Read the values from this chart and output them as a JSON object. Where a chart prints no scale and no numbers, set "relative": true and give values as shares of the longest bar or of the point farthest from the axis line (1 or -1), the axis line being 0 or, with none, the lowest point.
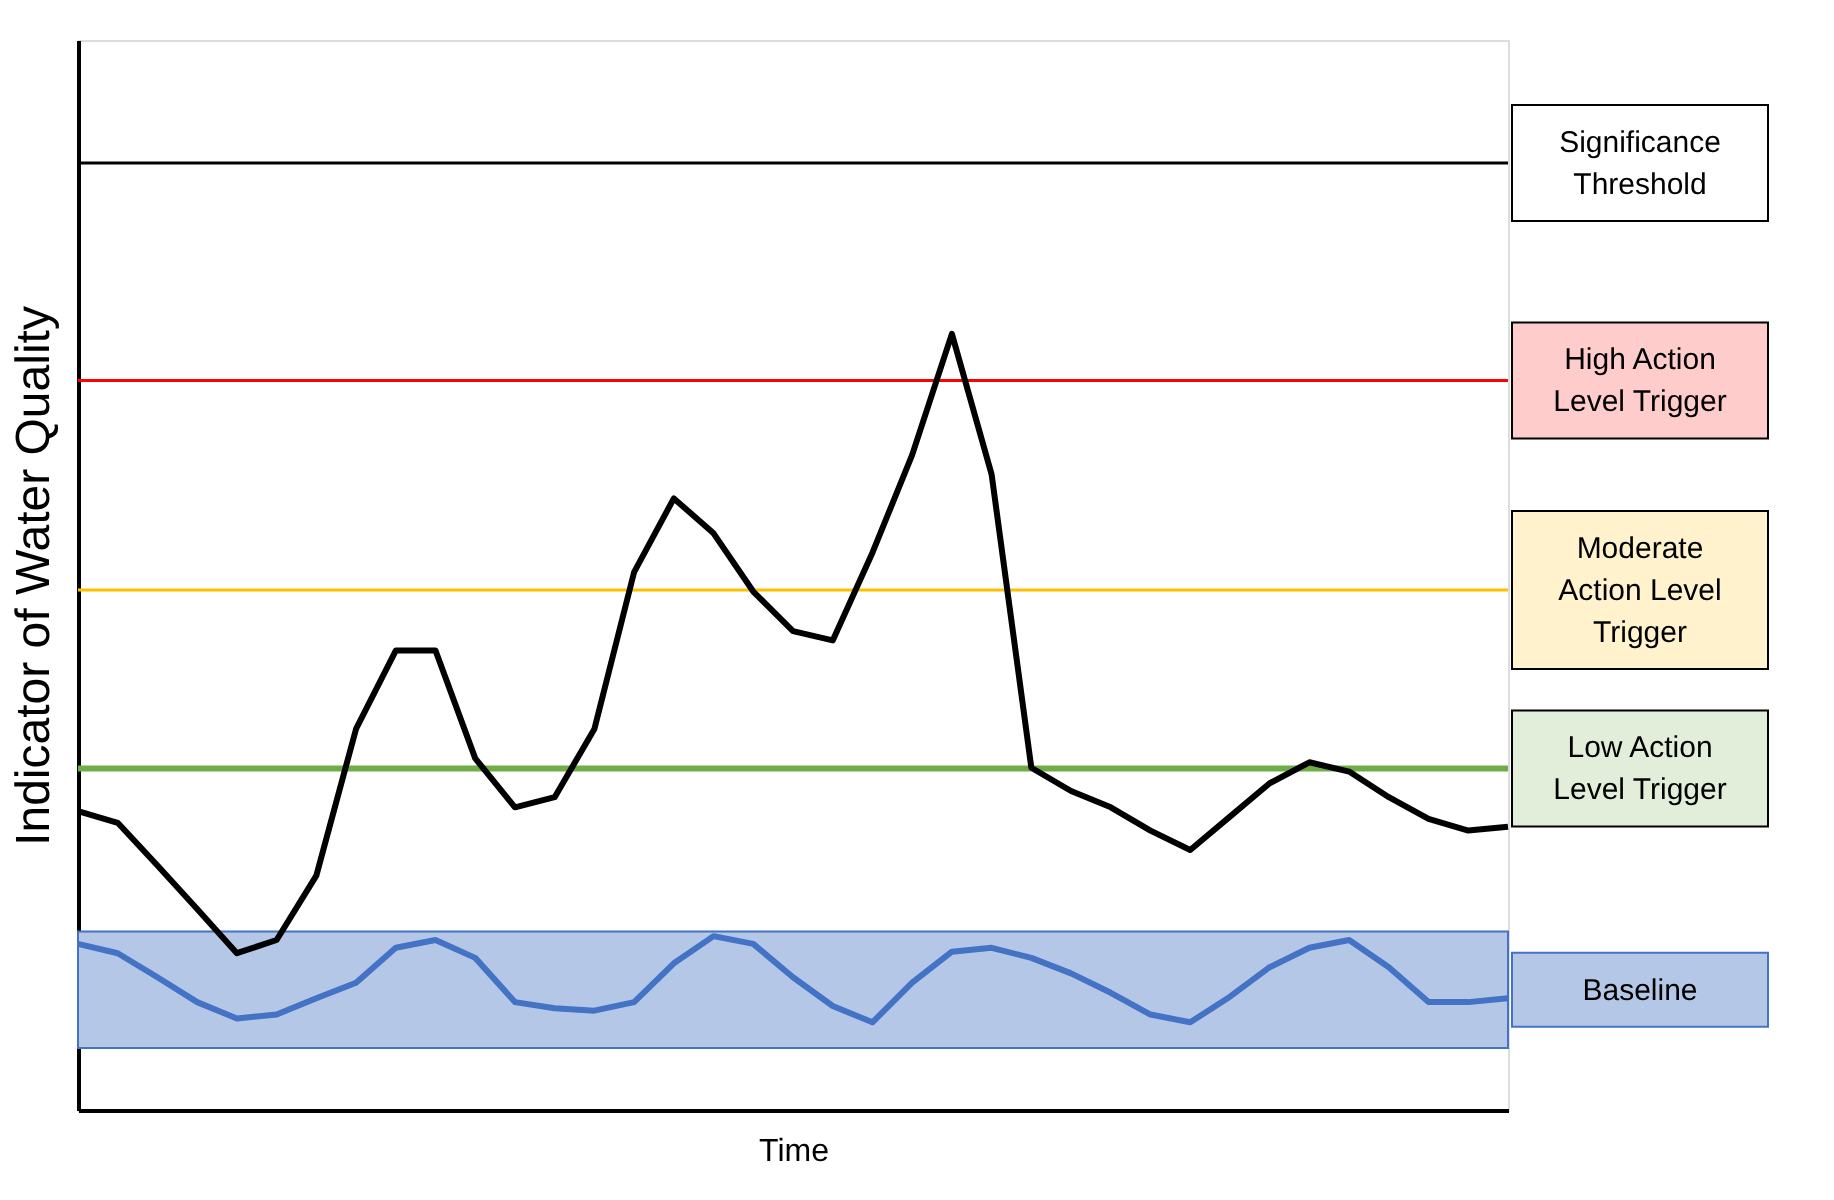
{
  "chart_data": {
    "type": "line",
    "relative": true,
    "ylabel": "Indicator of Water Quality",
    "xlabel": "Time",
    "grid": false,
    "legend": false,
    "categories": [
      null,
      null,
      null,
      null,
      null,
      null,
      null,
      null,
      null,
      null,
      null,
      null,
      null,
      null,
      null,
      null,
      null,
      null,
      null,
      null,
      null,
      null,
      null,
      null,
      null,
      null,
      null,
      null,
      null,
      null,
      null,
      null,
      null,
      null,
      null,
      null,
      null
    ],
    "series": [
      {
        "color": "#000000",
        "values": [
          0.385,
          0.37,
          0.315,
          0.259,
          0.202,
          0.219,
          0.302,
          0.491,
          0.592,
          0.592,
          0.453,
          0.39,
          0.403,
          0.491,
          0.693,
          0.788,
          0.743,
          0.668,
          0.617,
          0.605,
          0.718,
          0.844,
          1.0,
          0.819,
          0.441,
          0.411,
          0.39,
          0.36,
          0.335,
          0.378,
          0.421,
          0.448,
          0.436,
          0.403,
          0.375,
          0.36,
          0.365
        ]
      },
      {
        "color": "#4472c4",
        "values": [
          0.214,
          0.202,
          0.171,
          0.139,
          0.118,
          0.123,
          0.144,
          0.164,
          0.209,
          0.219,
          0.196,
          0.139,
          0.131,
          0.128,
          0.139,
          0.189,
          0.224,
          0.214,
          0.171,
          0.134,
          0.113,
          0.164,
          0.204,
          0.209,
          0.196,
          0.176,
          0.151,
          0.123,
          0.113,
          0.146,
          0.184,
          0.209,
          0.219,
          0.184,
          0.139,
          0.139,
          0.144
        ]
      }
    ],
    "ref_lines": [
      {
        "axis": "y",
        "value": 1.22,
        "label": "Significance Threshold",
        "color": "#000000"
      },
      {
        "axis": "y",
        "value": 0.94,
        "label": "High Action Level Trigger",
        "color": "#ff0000"
      },
      {
        "axis": "y",
        "value": 0.67,
        "label": "Moderate Action Level Trigger",
        "color": "#ffc000"
      },
      {
        "axis": "y",
        "value": 0.44,
        "label": "Low Action Level Trigger",
        "color": "#70ad47"
      }
    ],
    "bands": [
      {
        "axis": "y",
        "from": 0.08,
        "to": 0.23,
        "label": "Baseline",
        "color": "#b4c7e7"
      }
    ]
  }
}
